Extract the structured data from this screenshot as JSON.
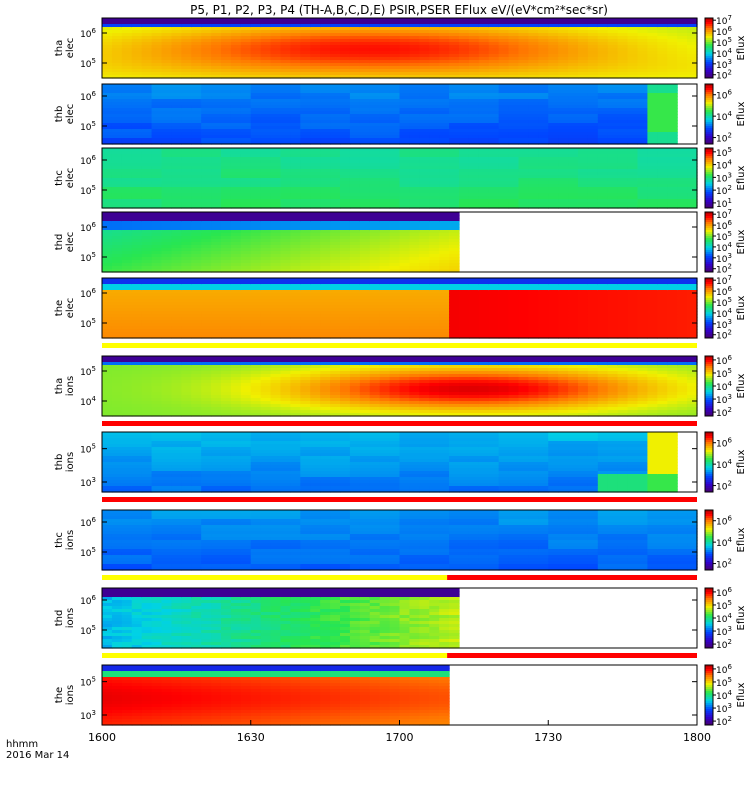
{
  "chart_data": {
    "type": "heatmap",
    "title": "P5, P1, P2, P3, P4 (TH-A,B,C,D,E) PSIR,PSER EFlux eV/(eV*cm²*sec*sr)",
    "x_ticks": [
      "1600",
      "1630",
      "1700",
      "1730",
      "1800"
    ],
    "x_labels": [
      "hhmm",
      "2016 Mar 14"
    ],
    "colorbar_label": "Eflux",
    "panels": [
      {
        "probe": "tha",
        "species": "elec",
        "y_ticks": [
          {
            "base": "10",
            "exp": "6",
            "v": 6
          },
          {
            "base": "10",
            "exp": "5",
            "v": 5
          }
        ],
        "y_range": [
          4.5,
          6.5
        ],
        "cbar": [
          {
            "base": "10",
            "exp": "7",
            "v": 7
          },
          {
            "base": "10",
            "exp": "6",
            "v": 6
          },
          {
            "base": "10",
            "exp": "5",
            "v": 5
          },
          {
            "base": "10",
            "exp": "4",
            "v": 4
          },
          {
            "base": "10",
            "exp": "3",
            "v": 3
          },
          {
            "base": "10",
            "exp": "2",
            "v": 2
          }
        ],
        "cbar_range": [
          1.7,
          7.2
        ],
        "data_end": 1.0,
        "profile": "tha_e",
        "stripe": null
      },
      {
        "probe": "thb",
        "species": "elec",
        "y_ticks": [
          {
            "base": "10",
            "exp": "6",
            "v": 6
          },
          {
            "base": "10",
            "exp": "5",
            "v": 5
          }
        ],
        "y_range": [
          4.4,
          6.4
        ],
        "cbar": [
          {
            "base": "10",
            "exp": "6",
            "v": 6
          },
          {
            "base": "10",
            "exp": "4",
            "v": 4
          },
          {
            "base": "10",
            "exp": "2",
            "v": 2
          }
        ],
        "cbar_range": [
          1.4,
          7.0
        ],
        "data_end": 0.97,
        "profile": "thb_e",
        "stripe": null
      },
      {
        "probe": "thc",
        "species": "elec",
        "y_ticks": [
          {
            "base": "10",
            "exp": "6",
            "v": 6
          },
          {
            "base": "10",
            "exp": "5",
            "v": 5
          }
        ],
        "y_range": [
          4.4,
          6.4
        ],
        "cbar": [
          {
            "base": "10",
            "exp": "5",
            "v": 5
          },
          {
            "base": "10",
            "exp": "4",
            "v": 4
          },
          {
            "base": "10",
            "exp": "3",
            "v": 3
          },
          {
            "base": "10",
            "exp": "2",
            "v": 2
          },
          {
            "base": "10",
            "exp": "1",
            "v": 1
          }
        ],
        "cbar_range": [
          0.6,
          5.3
        ],
        "data_end": 1.0,
        "profile": "thc_e",
        "stripe": null
      },
      {
        "probe": "thd",
        "species": "elec",
        "y_ticks": [
          {
            "base": "10",
            "exp": "6",
            "v": 6
          },
          {
            "base": "10",
            "exp": "5",
            "v": 5
          }
        ],
        "y_range": [
          4.5,
          6.5
        ],
        "cbar": [
          {
            "base": "10",
            "exp": "7",
            "v": 7
          },
          {
            "base": "10",
            "exp": "6",
            "v": 6
          },
          {
            "base": "10",
            "exp": "5",
            "v": 5
          },
          {
            "base": "10",
            "exp": "4",
            "v": 4
          },
          {
            "base": "10",
            "exp": "3",
            "v": 3
          },
          {
            "base": "10",
            "exp": "2",
            "v": 2
          }
        ],
        "cbar_range": [
          1.7,
          7.2
        ],
        "data_end": 0.605,
        "profile": "thd_e",
        "stripe": null
      },
      {
        "probe": "the",
        "species": "elec",
        "y_ticks": [
          {
            "base": "10",
            "exp": "6",
            "v": 6
          },
          {
            "base": "10",
            "exp": "5",
            "v": 5
          }
        ],
        "y_range": [
          4.5,
          6.5
        ],
        "cbar": [
          {
            "base": "10",
            "exp": "7",
            "v": 7
          },
          {
            "base": "10",
            "exp": "6",
            "v": 6
          },
          {
            "base": "10",
            "exp": "5",
            "v": 5
          },
          {
            "base": "10",
            "exp": "4",
            "v": 4
          },
          {
            "base": "10",
            "exp": "3",
            "v": 3
          },
          {
            "base": "10",
            "exp": "2",
            "v": 2
          }
        ],
        "cbar_range": [
          1.7,
          7.2
        ],
        "data_end": 1.0,
        "profile": "the_e",
        "stripe": [
          {
            "from": 0,
            "to": 1,
            "color": "#ffff00"
          }
        ]
      },
      {
        "probe": "tha",
        "species": "ions",
        "y_ticks": [
          {
            "base": "10",
            "exp": "5",
            "v": 5
          },
          {
            "base": "10",
            "exp": "4",
            "v": 4
          }
        ],
        "y_range": [
          3.5,
          5.5
        ],
        "cbar": [
          {
            "base": "10",
            "exp": "6",
            "v": 6
          },
          {
            "base": "10",
            "exp": "5",
            "v": 5
          },
          {
            "base": "10",
            "exp": "4",
            "v": 4
          },
          {
            "base": "10",
            "exp": "3",
            "v": 3
          },
          {
            "base": "10",
            "exp": "2",
            "v": 2
          }
        ],
        "cbar_range": [
          1.7,
          6.3
        ],
        "data_end": 1.0,
        "profile": "tha_i",
        "stripe": [
          {
            "from": 0,
            "to": 1,
            "color": "#ff0000"
          }
        ]
      },
      {
        "probe": "thb",
        "species": "ions",
        "y_ticks": [
          {
            "base": "10",
            "exp": "5",
            "v": 5
          },
          {
            "base": "10",
            "exp": "3",
            "v": 3
          }
        ],
        "y_range": [
          2.4,
          6.0
        ],
        "cbar": [
          {
            "base": "10",
            "exp": "6",
            "v": 6
          },
          {
            "base": "10",
            "exp": "4",
            "v": 4
          },
          {
            "base": "10",
            "exp": "2",
            "v": 2
          }
        ],
        "cbar_range": [
          1.4,
          7.0
        ],
        "data_end": 0.97,
        "profile": "thb_i",
        "stripe": [
          {
            "from": 0,
            "to": 1,
            "color": "#ff0000"
          }
        ]
      },
      {
        "probe": "thc",
        "species": "ions",
        "y_ticks": [
          {
            "base": "10",
            "exp": "6",
            "v": 6
          },
          {
            "base": "10",
            "exp": "5",
            "v": 5
          }
        ],
        "y_range": [
          4.4,
          6.4
        ],
        "cbar": [
          {
            "base": "10",
            "exp": "6",
            "v": 6
          },
          {
            "base": "10",
            "exp": "4",
            "v": 4
          },
          {
            "base": "10",
            "exp": "2",
            "v": 2
          }
        ],
        "cbar_range": [
          1.4,
          7.0
        ],
        "data_end": 1.0,
        "profile": "thc_i",
        "stripe": [
          {
            "from": 0,
            "to": 0.58,
            "color": "#ffff00"
          },
          {
            "from": 0.58,
            "to": 1,
            "color": "#ff0000"
          }
        ]
      },
      {
        "probe": "thd",
        "species": "ions",
        "y_ticks": [
          {
            "base": "10",
            "exp": "6",
            "v": 6
          },
          {
            "base": "10",
            "exp": "5",
            "v": 5
          }
        ],
        "y_range": [
          4.4,
          6.4
        ],
        "cbar": [
          {
            "base": "10",
            "exp": "6",
            "v": 6
          },
          {
            "base": "10",
            "exp": "5",
            "v": 5
          },
          {
            "base": "10",
            "exp": "4",
            "v": 4
          },
          {
            "base": "10",
            "exp": "3",
            "v": 3
          },
          {
            "base": "10",
            "exp": "2",
            "v": 2
          }
        ],
        "cbar_range": [
          1.7,
          6.3
        ],
        "data_end": 0.605,
        "profile": "thd_i",
        "stripe": [
          {
            "from": 0,
            "to": 0.58,
            "color": "#ffff00"
          },
          {
            "from": 0.58,
            "to": 1,
            "color": "#ff0000"
          }
        ]
      },
      {
        "probe": "the",
        "species": "ions",
        "y_ticks": [
          {
            "base": "10",
            "exp": "5",
            "v": 5
          },
          {
            "base": "10",
            "exp": "3",
            "v": 3
          }
        ],
        "y_range": [
          2.4,
          6.0
        ],
        "cbar": [
          {
            "base": "10",
            "exp": "6",
            "v": 6
          },
          {
            "base": "10",
            "exp": "5",
            "v": 5
          },
          {
            "base": "10",
            "exp": "4",
            "v": 4
          },
          {
            "base": "10",
            "exp": "3",
            "v": 3
          },
          {
            "base": "10",
            "exp": "2",
            "v": 2
          }
        ],
        "cbar_range": [
          1.7,
          6.3
        ],
        "data_end": 0.585,
        "profile": "the_i",
        "stripe": null
      }
    ]
  }
}
